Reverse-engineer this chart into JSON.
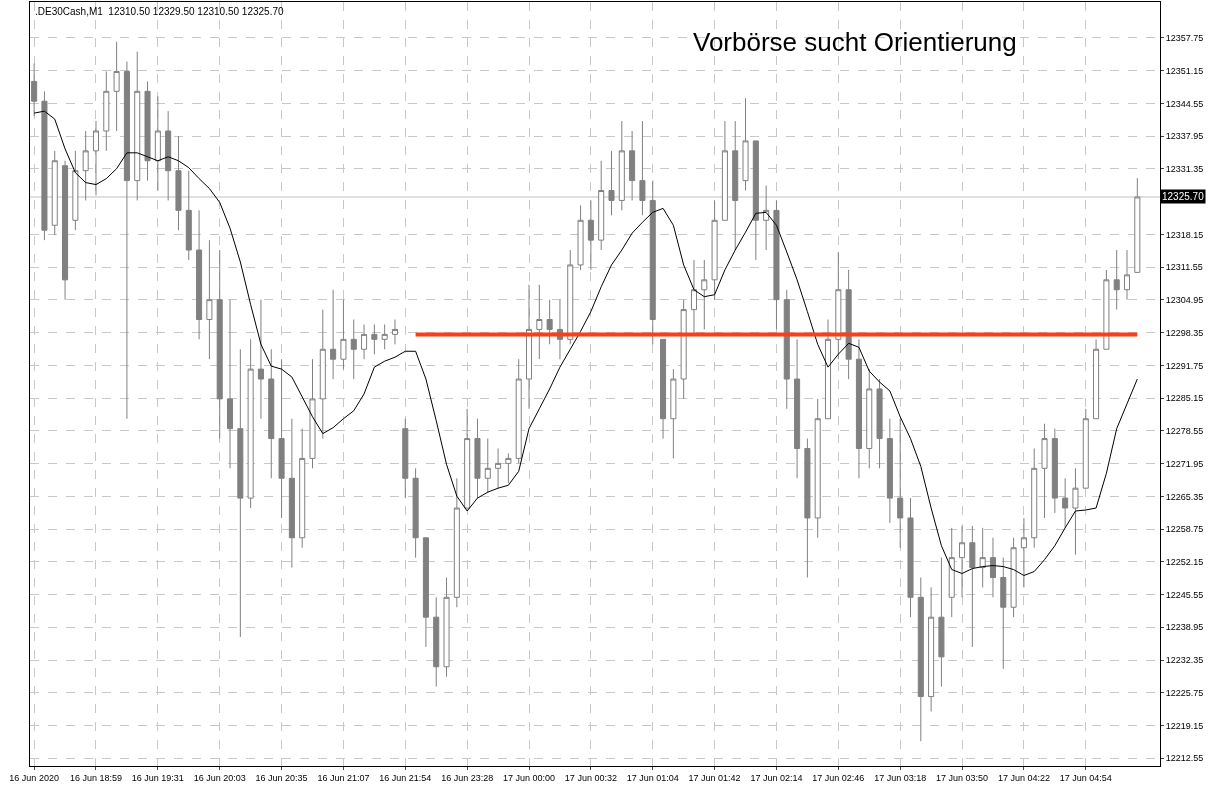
{
  "chart_data": {
    "type": "candlestick",
    "title": "Vorbörse sucht Orientierung",
    "subtitle": ".DE30Cash,M1  12310.50 12329.50 12310.50 12325.70",
    "categories": [
      "16 Jun 2020",
      null,
      null,
      null,
      null,
      null,
      "16 Jun 18:59",
      null,
      null,
      null,
      null,
      null,
      "16 Jun 19:31",
      null,
      null,
      null,
      null,
      null,
      "16 Jun 20:03",
      null,
      null,
      null,
      null,
      null,
      "16 Jun 20:35",
      null,
      null,
      null,
      null,
      null,
      "16 Jun 21:07",
      null,
      null,
      null,
      null,
      null,
      "16 Jun 21:54",
      null,
      null,
      null,
      null,
      null,
      "16 Jun 23:28",
      null,
      null,
      null,
      null,
      null,
      "17 Jun 00:00",
      null,
      null,
      null,
      null,
      null,
      "17 Jun 00:32",
      null,
      null,
      null,
      null,
      null,
      "17 Jun 01:04",
      null,
      null,
      null,
      null,
      null,
      "17 Jun 01:42",
      null,
      null,
      null,
      null,
      null,
      "17 Jun 02:14",
      null,
      null,
      null,
      null,
      null,
      "17 Jun 02:46",
      null,
      null,
      null,
      null,
      null,
      "17 Jun 03:18",
      null,
      null,
      null,
      null,
      null,
      "17 Jun 03:50",
      null,
      null,
      null,
      null,
      null,
      "17 Jun 04:22",
      null,
      null,
      null,
      null,
      null,
      "17 Jun 04:54",
      null,
      null,
      null,
      null,
      null
    ],
    "color": "#808080",
    "ohlc": [
      [
        12349,
        12352.6,
        12342,
        12345
      ],
      [
        12345,
        12347,
        12317,
        12319
      ],
      [
        12320,
        12335,
        12318,
        12333
      ],
      [
        12332,
        12333,
        12305,
        12309
      ],
      [
        12321,
        12335,
        12319,
        12331
      ],
      [
        12331,
        12339,
        12325,
        12335
      ],
      [
        12335,
        12341,
        12326,
        12339
      ],
      [
        12339,
        12351,
        12335,
        12347
      ],
      [
        12347,
        12357,
        12339,
        12351
      ],
      [
        12351,
        12353,
        12281,
        12329
      ],
      [
        12329,
        12355,
        12325,
        12347
      ],
      [
        12347,
        12349,
        12329,
        12333
      ],
      [
        12333,
        12346,
        12327,
        12339
      ],
      [
        12339,
        12343,
        12325,
        12331
      ],
      [
        12331,
        12338,
        12319,
        12323
      ],
      [
        12323,
        12331,
        12313,
        12315
      ],
      [
        12315,
        12323,
        12297,
        12301
      ],
      [
        12301,
        12317,
        12293,
        12305
      ],
      [
        12305,
        12315,
        12277,
        12285
      ],
      [
        12285,
        12305,
        12271,
        12279
      ],
      [
        12279,
        12295,
        12237,
        12265
      ],
      [
        12265,
        12297,
        12263,
        12291
      ],
      [
        12291,
        12305,
        12281,
        12289
      ],
      [
        12289,
        12295,
        12269,
        12277
      ],
      [
        12277,
        12293,
        12261,
        12269
      ],
      [
        12269,
        12281,
        12251,
        12257
      ],
      [
        12257,
        12279,
        12255,
        12273
      ],
      [
        12273,
        12293,
        12271,
        12285
      ],
      [
        12285,
        12303,
        12277,
        12295
      ],
      [
        12295,
        12307,
        12289,
        12293
      ],
      [
        12293,
        12305,
        12291,
        12297
      ],
      [
        12297,
        12301,
        12289,
        12295
      ],
      [
        12295,
        12300,
        12293,
        12298
      ],
      [
        12298,
        12300,
        12294,
        12297
      ],
      [
        12297,
        12300,
        12295,
        12298
      ],
      [
        12298,
        12301,
        12296,
        12299
      ],
      [
        12279,
        12281,
        12265,
        12269
      ],
      [
        12269,
        12271,
        12253,
        12257
      ],
      [
        12257,
        12257,
        12235,
        12241
      ],
      [
        12241,
        12245,
        12227,
        12231
      ],
      [
        12231,
        12249,
        12229,
        12245
      ],
      [
        12245,
        12269,
        12243,
        12263
      ],
      [
        12263,
        12283,
        12263,
        12277
      ],
      [
        12277,
        12281,
        12265,
        12269
      ],
      [
        12269,
        12277,
        12266,
        12271
      ],
      [
        12271,
        12275,
        12267,
        12272
      ],
      [
        12272,
        12274,
        12268,
        12273
      ],
      [
        12273,
        12293,
        12272,
        12289
      ],
      [
        12289,
        12308,
        12283,
        12299
      ],
      [
        12299,
        12308,
        12293,
        12301
      ],
      [
        12301,
        12305,
        12296,
        12299
      ],
      [
        12299,
        12305,
        12293,
        12297
      ],
      [
        12297,
        12315,
        12296,
        12312
      ],
      [
        12312,
        12324,
        12311,
        12321
      ],
      [
        12321,
        12325,
        12311,
        12317
      ],
      [
        12317,
        12333,
        12315,
        12327
      ],
      [
        12327,
        12335,
        12322,
        12325
      ],
      [
        12325,
        12341,
        12323,
        12335
      ],
      [
        12335,
        12339,
        12325,
        12329
      ],
      [
        12329,
        12341,
        12322,
        12325
      ],
      [
        12325,
        12329,
        12296,
        12301
      ],
      [
        12297,
        12297,
        12277,
        12281
      ],
      [
        12281,
        12291,
        12273,
        12289
      ],
      [
        12289,
        12305,
        12285,
        12303
      ],
      [
        12303,
        12313,
        12298,
        12307
      ],
      [
        12307,
        12313,
        12299,
        12309
      ],
      [
        12309,
        12325,
        12305,
        12321
      ],
      [
        12321,
        12341,
        12321,
        12335
      ],
      [
        12335,
        12341,
        12315,
        12325
      ],
      [
        12329,
        12345.6,
        12327,
        12337
      ],
      [
        12337,
        12337,
        12313,
        12321
      ],
      [
        12321,
        12328,
        12315,
        12323
      ],
      [
        12323,
        12325,
        12299,
        12305
      ],
      [
        12305,
        12307,
        12283,
        12289
      ],
      [
        12289,
        12297,
        12269,
        12275
      ],
      [
        12275,
        12277,
        12249,
        12261
      ],
      [
        12261,
        12285,
        12257,
        12281
      ],
      [
        12281,
        12301,
        12281,
        12297
      ],
      [
        12297,
        12314.6,
        12293,
        12307
      ],
      [
        12307,
        12311,
        12289,
        12293
      ],
      [
        12293,
        12297,
        12269,
        12275
      ],
      [
        12275,
        12291,
        12271,
        12287
      ],
      [
        12287,
        12289,
        12271,
        12277
      ],
      [
        12277,
        12281,
        12260,
        12265
      ],
      [
        12265,
        12281,
        12255,
        12261
      ],
      [
        12261,
        12265,
        12241,
        12245
      ],
      [
        12245,
        12249,
        12216,
        12225
      ],
      [
        12225,
        12247,
        12222,
        12241
      ],
      [
        12241,
        12253,
        12227,
        12233
      ],
      [
        12245,
        12259,
        12241,
        12253
      ],
      [
        12253,
        12259.4,
        12245,
        12256
      ],
      [
        12256,
        12259.4,
        12235,
        12251
      ],
      [
        12251,
        12259,
        12247,
        12253
      ],
      [
        12253,
        12257,
        12245,
        12249
      ],
      [
        12249,
        12253,
        12230.6,
        12243
      ],
      [
        12243,
        12257,
        12241,
        12255
      ],
      [
        12255,
        12261,
        12247,
        12257
      ],
      [
        12257,
        12275,
        12255,
        12271
      ],
      [
        12271,
        12280,
        12261,
        12277
      ],
      [
        12277,
        12279,
        12262,
        12265
      ],
      [
        12265,
        12269,
        12259,
        12263
      ],
      [
        12263,
        12271,
        12253.6,
        12267
      ],
      [
        12267,
        12283,
        12267,
        12281
      ],
      [
        12281,
        12297,
        12281,
        12295
      ],
      [
        12295,
        12311,
        12295,
        12309
      ],
      [
        12309,
        12315,
        12303,
        12307
      ],
      [
        12307,
        12315,
        12305,
        12310
      ],
      [
        12310.5,
        12329.5,
        12310.5,
        12325.7
      ]
    ],
    "series": [
      {
        "type": "line",
        "color": "#000000",
        "values": [
          12342.6,
          12343,
          12341.4,
          12335.4,
          12330.6,
          12328.6,
          12328.2,
          12329.4,
          12331.4,
          12334.6,
          12334.6,
          12333.8,
          12333,
          12333.8,
          12333,
          12331.6,
          12329.4,
          12327.4,
          12324.6,
          12319.4,
          12312.6,
          12304,
          12296,
          12291.6,
          12291,
          12289.4,
          12285.4,
          12281.4,
          12278,
          12279.2,
          12281,
          12282.6,
          12286,
          12291.4,
          12292.6,
          12293.4,
          12294.6,
          12294.6,
          12289,
          12280.6,
          12271.8,
          12265.4,
          12262.4,
          12265,
          12266.2,
          12267,
          12267.6,
          12270.4,
          12279,
          12283,
          12287,
          12291.4,
          12295,
          12298.6,
          12302.6,
          12307.6,
          12312,
          12315,
          12318.4,
          12320.6,
          12322.6,
          12323.4,
          12320,
          12312,
          12307,
          12305.6,
          12306,
          12311,
          12315,
          12318.6,
          12322.4,
          12322.6,
          12320,
          12314.6,
          12309,
          12302.6,
          12296,
          12291.4,
          12294,
          12296.2,
          12295.4,
          12290.6,
          12288.4,
          12286.6,
          12281.4,
          12277,
          12271.4,
          12263,
          12255.4,
          12250.6,
          12249.8,
          12250.8,
          12251.2,
          12251.4,
          12251.2,
          12250.6,
          12249.4,
          12250.2,
          12252.6,
          12255.4,
          12259,
          12262.4,
          12262.6,
          12263,
          12270,
          12279,
          12284,
          12289
        ]
      },
      {
        "type": "line",
        "color": "#ff3c14",
        "values": [
          null,
          null,
          null,
          null,
          null,
          null,
          null,
          null,
          null,
          null,
          null,
          null,
          null,
          null,
          null,
          null,
          null,
          null,
          null,
          null,
          null,
          null,
          null,
          null,
          null,
          null,
          null,
          null,
          null,
          null,
          null,
          null,
          null,
          null,
          null,
          null,
          null,
          12298,
          12298,
          12298,
          12298,
          12298,
          12298,
          12298,
          12298,
          12298,
          12298,
          12298,
          12298,
          12298,
          12298,
          12298,
          12298,
          12298,
          12298,
          12298,
          12298,
          12298,
          12298,
          12298,
          12298,
          12298,
          12298,
          12298,
          12298,
          12298,
          12298,
          12298,
          12298,
          12298,
          12298,
          12298,
          12298,
          12298,
          12298,
          12298,
          12298,
          12298,
          12298,
          12298,
          12298,
          12298,
          12298,
          12298,
          12298,
          12298,
          12298,
          12298,
          12298,
          12298,
          12298,
          12298,
          12298,
          12298,
          12298,
          12298,
          12298,
          12298,
          12298,
          12298,
          12298,
          12298,
          12298,
          12298,
          12298,
          12298,
          12298,
          12298
        ]
      }
    ],
    "ref_lines": [
      {
        "axis": "y",
        "value": 12325.7,
        "label": "12325.70",
        "color": "#c0c0c0"
      }
    ],
    "ylim": [
      12211,
      12365
    ],
    "yticks": [
      12212.55,
      12219.15,
      12225.75,
      12232.35,
      12238.95,
      12245.55,
      12252.15,
      12258.75,
      12265.35,
      12271.95,
      12278.55,
      12285.15,
      12291.75,
      12298.35,
      12304.95,
      12311.55,
      12318.15,
      12331.35,
      12337.95,
      12344.55,
      12351.15,
      12357.75
    ],
    "grid": true
  }
}
